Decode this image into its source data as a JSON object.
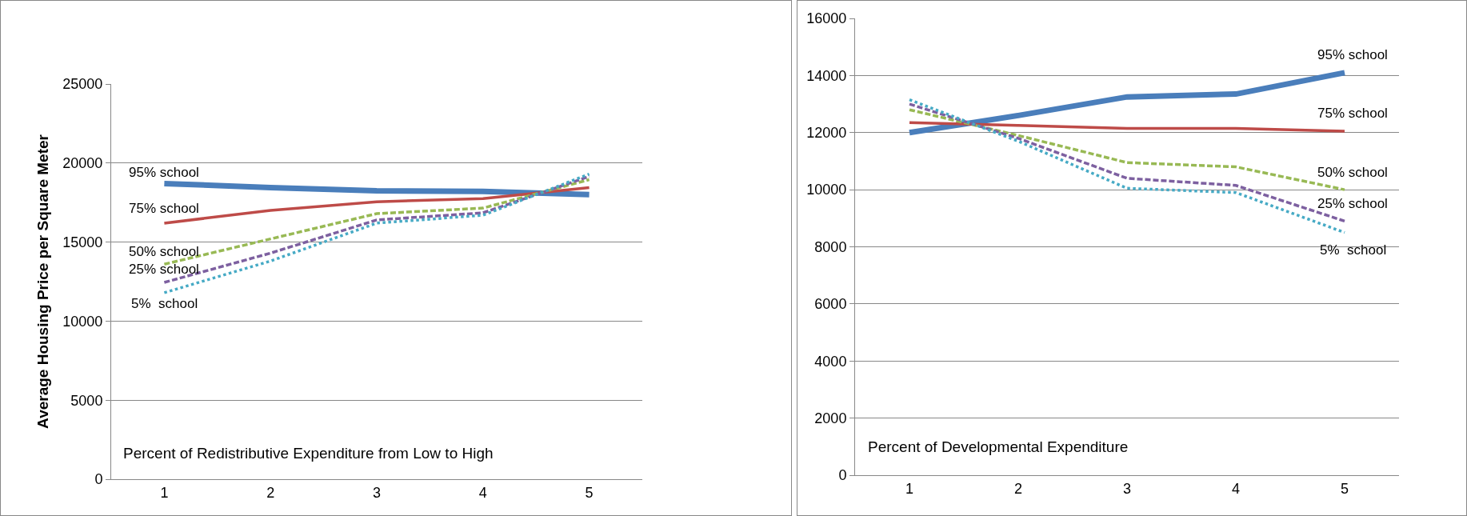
{
  "chart_data": [
    {
      "type": "line",
      "xlabel": "Percent of Redistributive Expenditure from Low to High",
      "ylabel": "Average Housing Price per Square Meter",
      "categories": [
        "1",
        "2",
        "3",
        "4",
        "5"
      ],
      "ylim": [
        0,
        25000
      ],
      "yticks": [
        0,
        5000,
        10000,
        15000,
        20000,
        25000
      ],
      "grid": "y",
      "legend": false,
      "marker": "none",
      "series": [
        {
          "name": "95% school",
          "color": "#4a7ebb",
          "line_style": "solid",
          "values": [
            18700,
            18450,
            18250,
            18200,
            18000
          ]
        },
        {
          "name": "75% school",
          "color": "#be4b48",
          "line_style": "solid",
          "values": [
            16200,
            17000,
            17550,
            17750,
            18450
          ]
        },
        {
          "name": "50% school",
          "color": "#98b954",
          "line_style": "dashed",
          "values": [
            13600,
            15200,
            16800,
            17150,
            18950
          ]
        },
        {
          "name": "25% school",
          "color": "#7d60a0",
          "line_style": "dashed",
          "values": [
            12450,
            14300,
            16400,
            16850,
            19150
          ]
        },
        {
          "name": "5%  school",
          "color": "#46aac5",
          "line_style": "dotted",
          "values": [
            11800,
            13800,
            16200,
            16700,
            19300
          ]
        }
      ]
    },
    {
      "type": "line",
      "xlabel": "Percent of Developmental Expenditure",
      "categories": [
        "1",
        "2",
        "3",
        "4",
        "5"
      ],
      "ylim": [
        0,
        16000
      ],
      "yticks": [
        0,
        2000,
        4000,
        6000,
        8000,
        10000,
        12000,
        14000,
        16000
      ],
      "grid": "y",
      "legend": false,
      "marker": "none",
      "series": [
        {
          "name": "95% school",
          "color": "#4a7ebb",
          "line_style": "solid",
          "values": [
            12000,
            12600,
            13250,
            13350,
            14100
          ]
        },
        {
          "name": "75% school",
          "color": "#be4b48",
          "line_style": "solid",
          "values": [
            12350,
            12250,
            12150,
            12150,
            12050
          ]
        },
        {
          "name": "50% school",
          "color": "#98b954",
          "line_style": "dashed",
          "values": [
            12800,
            11900,
            10950,
            10800,
            10000
          ]
        },
        {
          "name": "25% school",
          "color": "#7d60a0",
          "line_style": "dashed",
          "values": [
            13000,
            11800,
            10400,
            10150,
            8900
          ]
        },
        {
          "name": "5%  school",
          "color": "#46aac5",
          "line_style": "dotted",
          "values": [
            13150,
            11700,
            10050,
            9900,
            8500
          ]
        }
      ]
    }
  ]
}
